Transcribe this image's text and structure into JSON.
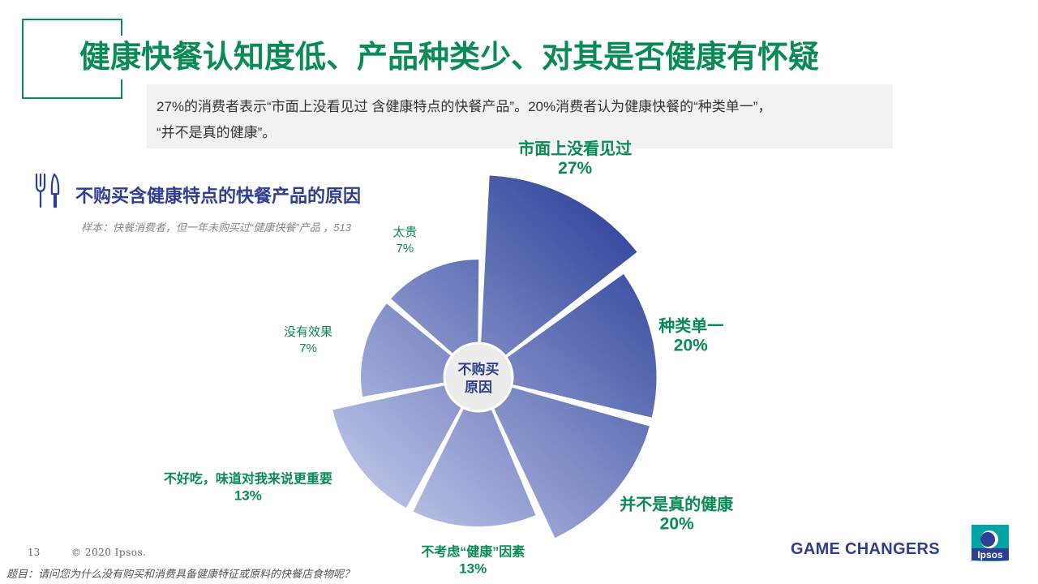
{
  "page": {
    "title": "健康快餐认知度低、产品种类少、对其是否健康有怀疑",
    "summary_line1": "27%的消费者表示“市面上没看见过 含健康特点的快餐产品”。20%消费者认为健康快餐的“种类单一”，",
    "summary_line2": "“并不是真的健康”。",
    "chart_title": "不购买含健康特点的快餐产品的原因",
    "sample_note": "样本：快餐消费者，但一年未购买过“健康快餐”产品 ，513",
    "page_number": "13",
    "copyright": "© 2020 Ipsos.",
    "question": "题目：请问您为什么没有购买和消费具备健康特征或原料的快餐店食物呢？",
    "tagline": "GAME CHANGERS",
    "logo_text": "Ipsos"
  },
  "colors": {
    "green": "#0a8a55",
    "navy": "#2e3f8f",
    "slice_dark": "#3a4da0",
    "slice_light": "#b3bde3",
    "center_fill": "#ececec",
    "logo_teal": "#00a3a6"
  },
  "icons": {
    "chart_title_icon": "fork-knife-icon"
  },
  "chart_data": {
    "type": "pie",
    "subtype": "polar-area",
    "center_label_line1": "不购买",
    "center_label_line2": "原因",
    "slices": [
      {
        "label": "市面上没看见过",
        "value": 27,
        "value_label": "27%"
      },
      {
        "label": "种类单一",
        "value": 20,
        "value_label": "20%"
      },
      {
        "label": "并不是真的健康",
        "value": 20,
        "value_label": "20%"
      },
      {
        "label": "不考虑“健康”因素",
        "value": 13,
        "value_label": "13%"
      },
      {
        "label": "不好吃，味道对我来说更重要",
        "value": 13,
        "value_label": "13%"
      },
      {
        "label": "没有效果",
        "value": 7,
        "value_label": "7%"
      },
      {
        "label": "太贵",
        "value": 7,
        "value_label": "7%"
      }
    ]
  }
}
